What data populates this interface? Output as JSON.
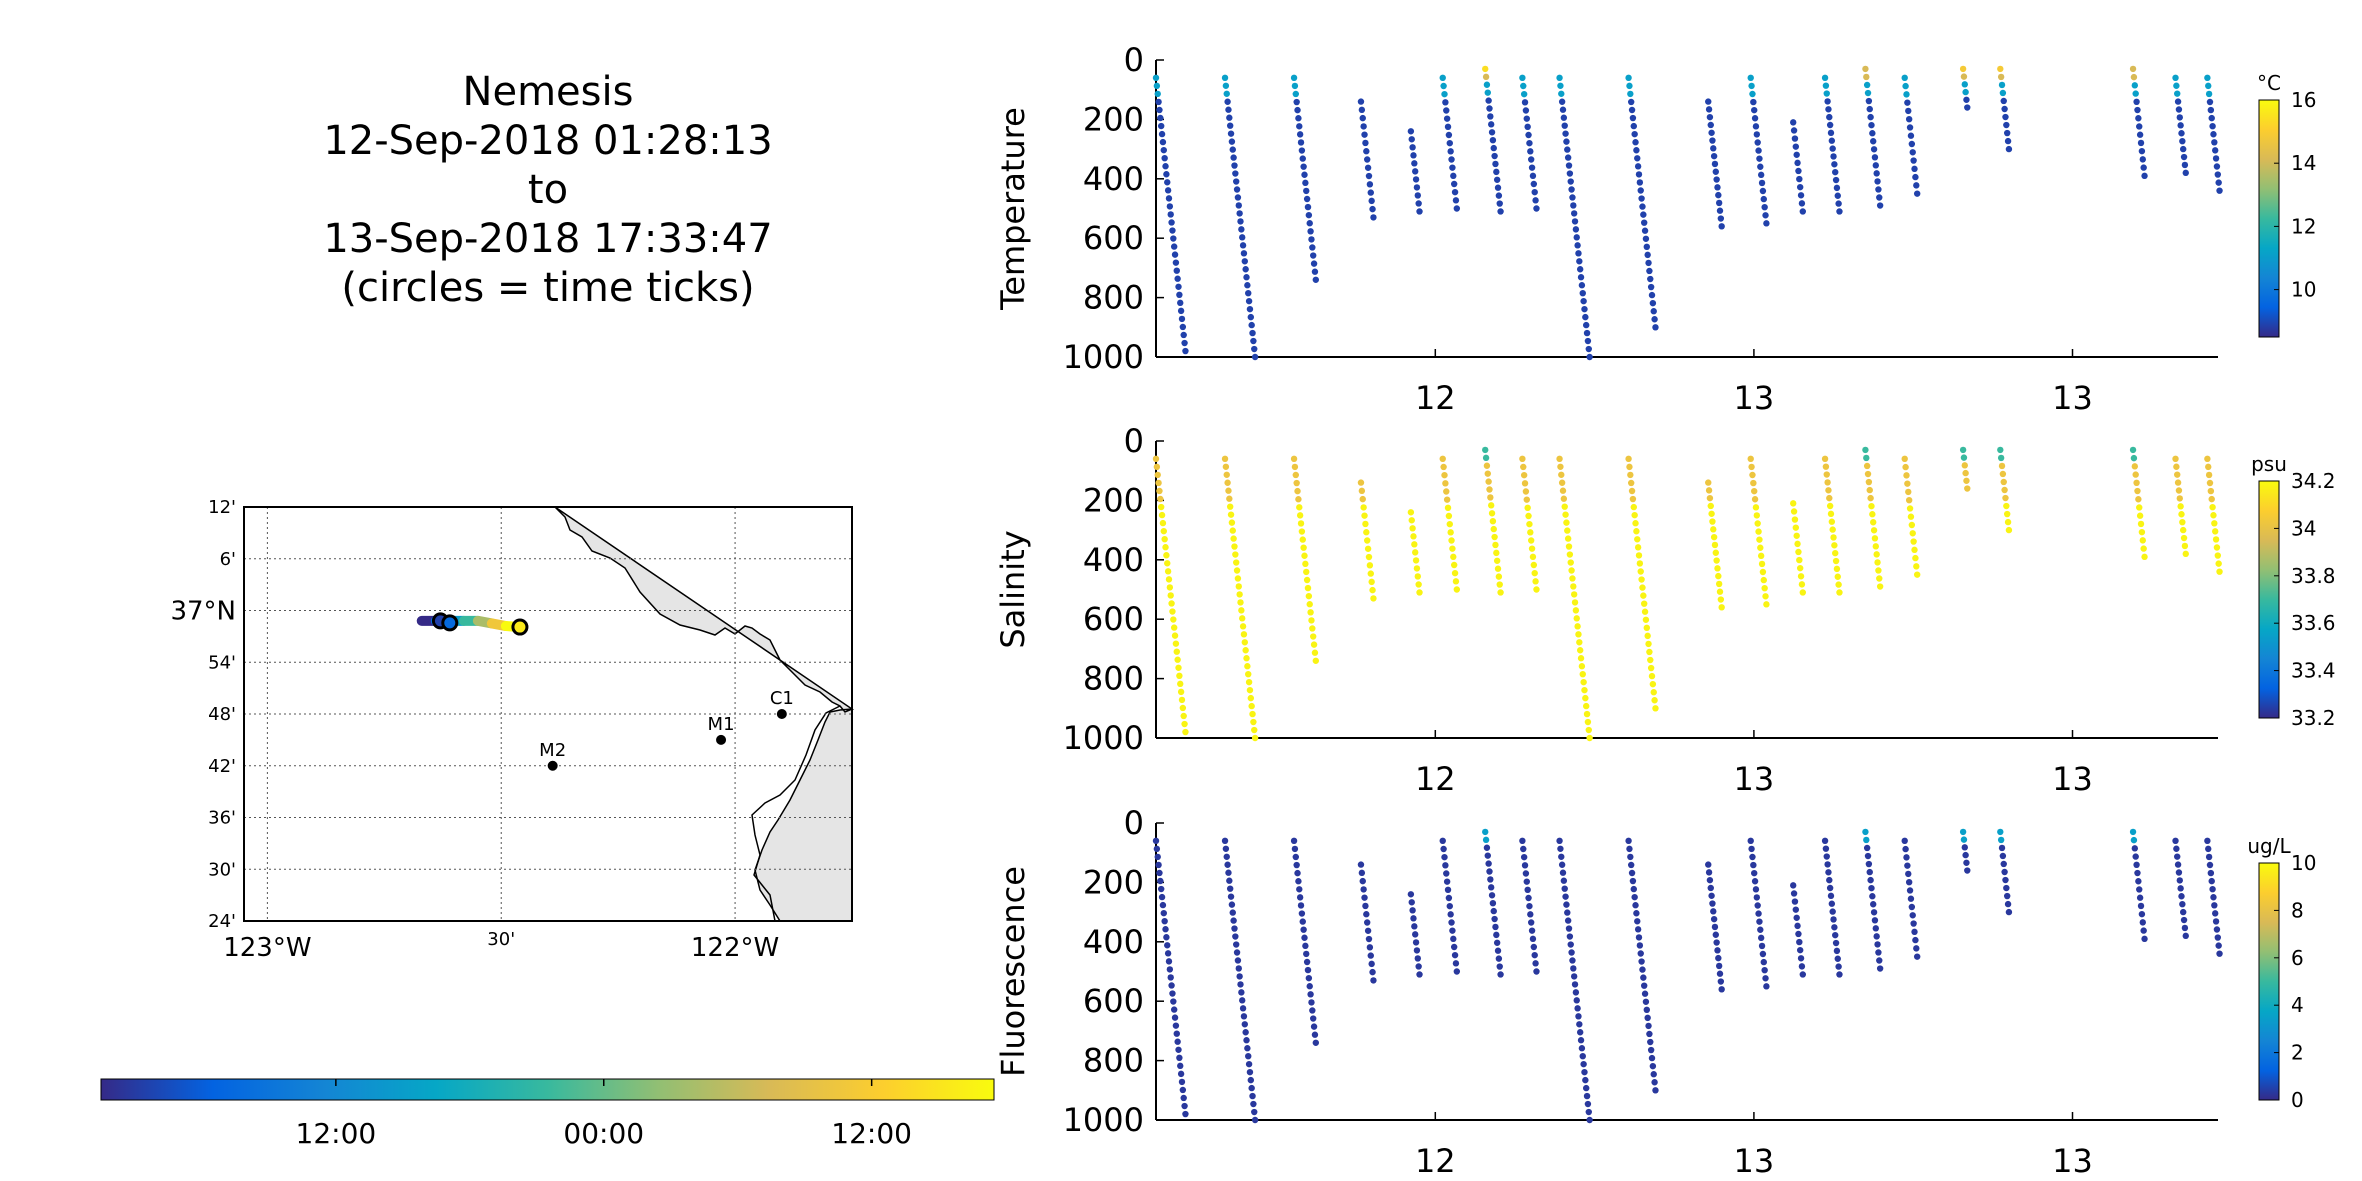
{
  "title": {
    "lines": [
      "Nemesis",
      "12-Sep-2018 01:28:13",
      "to",
      "13-Sep-2018 17:33:47",
      "(circles = time ticks)"
    ]
  },
  "map": {
    "lat_labels": [
      "12'",
      "6'",
      "37°N",
      "54'",
      "48'",
      "42'",
      "36'",
      "30'",
      "24'"
    ],
    "lon_labels": [
      "123°W",
      "30'",
      "122°W"
    ],
    "stations": [
      {
        "name": "M2",
        "lon": -122.39,
        "lat": 36.7
      },
      {
        "name": "M1",
        "lon": -122.03,
        "lat": 36.75
      },
      {
        "name": "C1",
        "lon": -121.9,
        "lat": 36.8
      }
    ],
    "track": [
      {
        "lon": -122.67,
        "lat": 36.98
      },
      {
        "lon": -122.64,
        "lat": 36.98
      },
      {
        "lon": -122.61,
        "lat": 36.98
      },
      {
        "lon": -122.58,
        "lat": 36.98
      },
      {
        "lon": -122.55,
        "lat": 36.98
      },
      {
        "lon": -122.52,
        "lat": 36.975
      },
      {
        "lon": -122.49,
        "lat": 36.97
      },
      {
        "lon": -122.46,
        "lat": 36.968
      }
    ],
    "time_ticks": [
      {
        "lon": -122.63,
        "lat": 36.98
      },
      {
        "lon": -122.61,
        "lat": 36.976
      },
      {
        "lon": -122.46,
        "lat": 36.968
      }
    ],
    "colorbar_ticks": [
      "12:00",
      "00:00",
      "12:00"
    ]
  },
  "colors": {
    "parula": [
      "#352a87",
      "#0363e1",
      "#1485d4",
      "#06a7c6",
      "#38b99e",
      "#92bf73",
      "#d9ba56",
      "#fcce2e",
      "#f9fb0e"
    ],
    "land": "#e5e5e5"
  },
  "chart_data": [
    {
      "type": "scatter",
      "ylabel": "Temperature",
      "colorbar_unit": "°C",
      "colorbar_ticks": [
        10,
        12,
        14,
        16
      ],
      "clim": [
        8.5,
        16
      ],
      "xlim": [
        0,
        1.0
      ],
      "ylim": [
        1000,
        0
      ],
      "y_ticks": [
        0,
        200,
        400,
        600,
        800,
        1000
      ],
      "x_tick_labels": [
        "12",
        "13",
        "13"
      ],
      "profiles": [
        {
          "x": 0.0,
          "zmin": 60,
          "zmax": 980
        },
        {
          "x": 0.065,
          "zmin": 60,
          "zmax": 1000
        },
        {
          "x": 0.13,
          "zmin": 60,
          "zmax": 740
        },
        {
          "x": 0.193,
          "zmin": 140,
          "zmax": 530
        },
        {
          "x": 0.24,
          "zmin": 240,
          "zmax": 510
        },
        {
          "x": 0.27,
          "zmin": 60,
          "zmax": 500
        },
        {
          "x": 0.31,
          "zmin": 30,
          "zmax": 510
        },
        {
          "x": 0.345,
          "zmin": 60,
          "zmax": 500
        },
        {
          "x": 0.38,
          "zmin": 60,
          "zmax": 1000
        },
        {
          "x": 0.445,
          "zmin": 60,
          "zmax": 900
        },
        {
          "x": 0.52,
          "zmin": 140,
          "zmax": 560
        },
        {
          "x": 0.56,
          "zmin": 60,
          "zmax": 550
        },
        {
          "x": 0.6,
          "zmin": 210,
          "zmax": 510
        },
        {
          "x": 0.63,
          "zmin": 60,
          "zmax": 510
        },
        {
          "x": 0.668,
          "zmin": 30,
          "zmax": 490
        },
        {
          "x": 0.705,
          "zmin": 60,
          "zmax": 450
        },
        {
          "x": 0.76,
          "zmin": 30,
          "zmax": 160
        },
        {
          "x": 0.795,
          "zmin": 30,
          "zmax": 300
        },
        {
          "x": 0.92,
          "zmin": 30,
          "zmax": 390
        },
        {
          "x": 0.96,
          "zmin": 60,
          "zmax": 380
        },
        {
          "x": 0.99,
          "zmin": 60,
          "zmax": 440
        }
      ]
    },
    {
      "type": "scatter",
      "ylabel": "Salinity",
      "colorbar_unit": "psu",
      "colorbar_ticks": [
        33.2,
        33.4,
        33.6,
        33.8,
        34,
        34.2
      ],
      "clim": [
        33.2,
        34.2
      ],
      "xlim": [
        0,
        1.0
      ],
      "ylim": [
        1000,
        0
      ],
      "y_ticks": [
        0,
        200,
        400,
        600,
        800,
        1000
      ],
      "x_tick_labels": [
        "12",
        "13",
        "13"
      ]
    },
    {
      "type": "scatter",
      "ylabel": "Fluorescence",
      "colorbar_unit": "ug/L",
      "colorbar_ticks": [
        0,
        2,
        4,
        6,
        8,
        10
      ],
      "clim": [
        0,
        10
      ],
      "xlim": [
        0,
        1.0
      ],
      "ylim": [
        1000,
        0
      ],
      "y_ticks": [
        0,
        200,
        400,
        600,
        800,
        1000
      ],
      "x_tick_labels": [
        "12",
        "13",
        "13"
      ]
    }
  ]
}
